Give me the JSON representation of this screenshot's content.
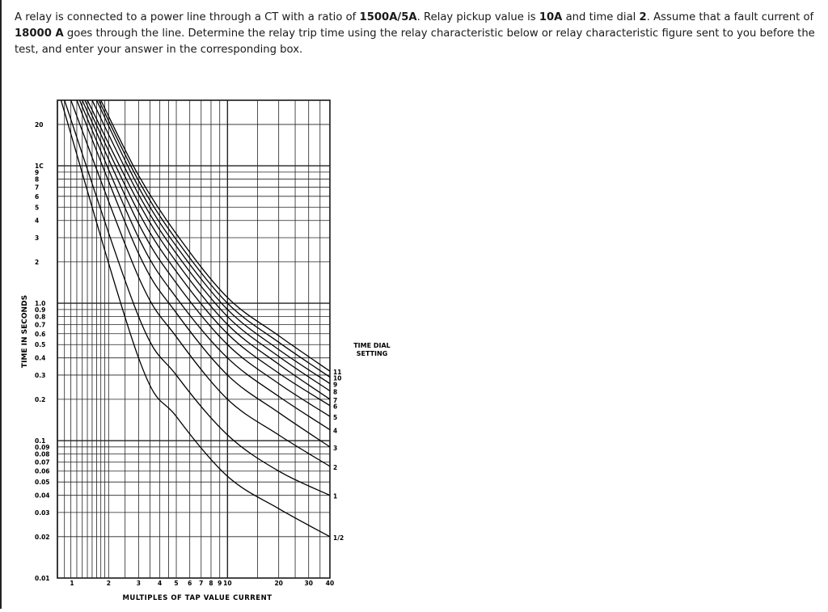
{
  "question": {
    "parts": [
      {
        "text": "A relay is connected to a power line through a CT with a ratio of ",
        "bold": false
      },
      {
        "text": "1500A/5A",
        "bold": true
      },
      {
        "text": ". Relay pickup value is ",
        "bold": false
      },
      {
        "text": "10A",
        "bold": true
      },
      {
        "text": " and time dial ",
        "bold": false
      },
      {
        "text": "2",
        "bold": true
      },
      {
        "text": ". Assume that a fault current of ",
        "bold": false
      },
      {
        "text": "18000 A",
        "bold": true
      },
      {
        "text": " goes through the line. Determine the relay trip time using the relay characteristic below or relay characteristic figure sent to you before the test, and enter your answer in the corresponding box.",
        "bold": false
      }
    ]
  },
  "chart_data": {
    "type": "line",
    "ylabel": "TIME IN SECONDS",
    "xlabel": "MULTIPLES OF TAP VALUE CURRENT",
    "curve_group_label": "TIME DIAL SETTING",
    "x_scale": "log",
    "y_scale": "log",
    "xlim": [
      1,
      40
    ],
    "ylim": [
      0.01,
      30
    ],
    "y_tick_labels": [
      {
        "v": 20,
        "t": "20"
      },
      {
        "v": 10,
        "t": "1C"
      },
      {
        "v": 9,
        "t": "9"
      },
      {
        "v": 8,
        "t": "8"
      },
      {
        "v": 7,
        "t": "7"
      },
      {
        "v": 6,
        "t": "6"
      },
      {
        "v": 5,
        "t": "5"
      },
      {
        "v": 4,
        "t": "4"
      },
      {
        "v": 3,
        "t": "3"
      },
      {
        "v": 2,
        "t": "2"
      },
      {
        "v": 1,
        "t": "1.0"
      },
      {
        "v": 0.9,
        "t": "0.9"
      },
      {
        "v": 0.8,
        "t": "0.8"
      },
      {
        "v": 0.7,
        "t": "0.7"
      },
      {
        "v": 0.6,
        "t": "0.6"
      },
      {
        "v": 0.5,
        "t": "0.5"
      },
      {
        "v": 0.4,
        "t": "0.4"
      },
      {
        "v": 0.3,
        "t": "0.3"
      },
      {
        "v": 0.2,
        "t": "0.2"
      },
      {
        "v": 0.1,
        "t": "0.1"
      },
      {
        "v": 0.09,
        "t": "0.09"
      },
      {
        "v": 0.08,
        "t": "0.08"
      },
      {
        "v": 0.07,
        "t": "0.07"
      },
      {
        "v": 0.06,
        "t": "0.06"
      },
      {
        "v": 0.05,
        "t": "0.05"
      },
      {
        "v": 0.04,
        "t": "0.04"
      },
      {
        "v": 0.03,
        "t": "0.03"
      },
      {
        "v": 0.02,
        "t": "0.02"
      },
      {
        "v": 0.01,
        "t": "0.01"
      }
    ],
    "x_tick_labels": [
      {
        "v": 1,
        "t": "1"
      },
      {
        "v": 2,
        "t": "2"
      },
      {
        "v": 3,
        "t": "3"
      },
      {
        "v": 4,
        "t": "4"
      },
      {
        "v": 5,
        "t": "5"
      },
      {
        "v": 6,
        "t": "6"
      },
      {
        "v": 7,
        "t": "7"
      },
      {
        "v": 8,
        "t": "8"
      },
      {
        "v": 9,
        "t": "9"
      },
      {
        "v": 10,
        "t": "10"
      },
      {
        "v": 20,
        "t": "20"
      },
      {
        "v": 30,
        "t": "30"
      },
      {
        "v": 40,
        "t": "40"
      }
    ],
    "series": [
      {
        "name": "11",
        "points": [
          [
            1.8,
            30
          ],
          [
            3,
            8.5
          ],
          [
            5,
            3.2
          ],
          [
            10,
            1.1
          ],
          [
            20,
            0.58
          ],
          [
            40,
            0.32
          ]
        ]
      },
      {
        "name": "10",
        "points": [
          [
            1.75,
            30
          ],
          [
            3,
            7.8
          ],
          [
            5,
            2.9
          ],
          [
            10,
            1.0
          ],
          [
            20,
            0.52
          ],
          [
            40,
            0.29
          ]
        ]
      },
      {
        "name": "9",
        "points": [
          [
            1.7,
            30
          ],
          [
            3,
            7.0
          ],
          [
            5,
            2.6
          ],
          [
            10,
            0.9
          ],
          [
            20,
            0.46
          ],
          [
            40,
            0.26
          ]
        ]
      },
      {
        "name": "8",
        "points": [
          [
            1.6,
            30
          ],
          [
            3,
            6.2
          ],
          [
            5,
            2.3
          ],
          [
            10,
            0.8
          ],
          [
            20,
            0.41
          ],
          [
            40,
            0.23
          ]
        ]
      },
      {
        "name": "7",
        "points": [
          [
            1.5,
            30
          ],
          [
            3,
            5.4
          ],
          [
            5,
            2.0
          ],
          [
            10,
            0.7
          ],
          [
            20,
            0.36
          ],
          [
            40,
            0.2
          ]
        ]
      },
      {
        "name": "6",
        "points": [
          [
            1.45,
            30
          ],
          [
            3,
            4.6
          ],
          [
            5,
            1.7
          ],
          [
            10,
            0.6
          ],
          [
            20,
            0.31
          ],
          [
            40,
            0.18
          ]
        ]
      },
      {
        "name": "5",
        "points": [
          [
            1.4,
            30
          ],
          [
            3,
            3.8
          ],
          [
            5,
            1.4
          ],
          [
            10,
            0.5
          ],
          [
            20,
            0.26
          ],
          [
            40,
            0.15
          ]
        ]
      },
      {
        "name": "4",
        "points": [
          [
            1.35,
            30
          ],
          [
            3,
            3.0
          ],
          [
            5,
            1.1
          ],
          [
            10,
            0.4
          ],
          [
            20,
            0.21
          ],
          [
            40,
            0.12
          ]
        ]
      },
      {
        "name": "3",
        "points": [
          [
            1.3,
            30
          ],
          [
            3,
            2.3
          ],
          [
            5,
            0.85
          ],
          [
            10,
            0.3
          ],
          [
            20,
            0.16
          ],
          [
            40,
            0.09
          ]
        ]
      },
      {
        "name": "2",
        "points": [
          [
            1.2,
            30
          ],
          [
            3,
            1.55
          ],
          [
            5,
            0.57
          ],
          [
            10,
            0.2
          ],
          [
            20,
            0.11
          ],
          [
            40,
            0.065
          ]
        ]
      },
      {
        "name": "1",
        "points": [
          [
            1.1,
            30
          ],
          [
            3,
            0.8
          ],
          [
            5,
            0.3
          ],
          [
            10,
            0.11
          ],
          [
            20,
            0.06
          ],
          [
            40,
            0.04
          ]
        ]
      },
      {
        "name": "1/2",
        "points": [
          [
            1.05,
            30
          ],
          [
            3,
            0.4
          ],
          [
            5,
            0.15
          ],
          [
            10,
            0.055
          ],
          [
            20,
            0.032
          ],
          [
            40,
            0.02
          ]
        ]
      }
    ]
  }
}
